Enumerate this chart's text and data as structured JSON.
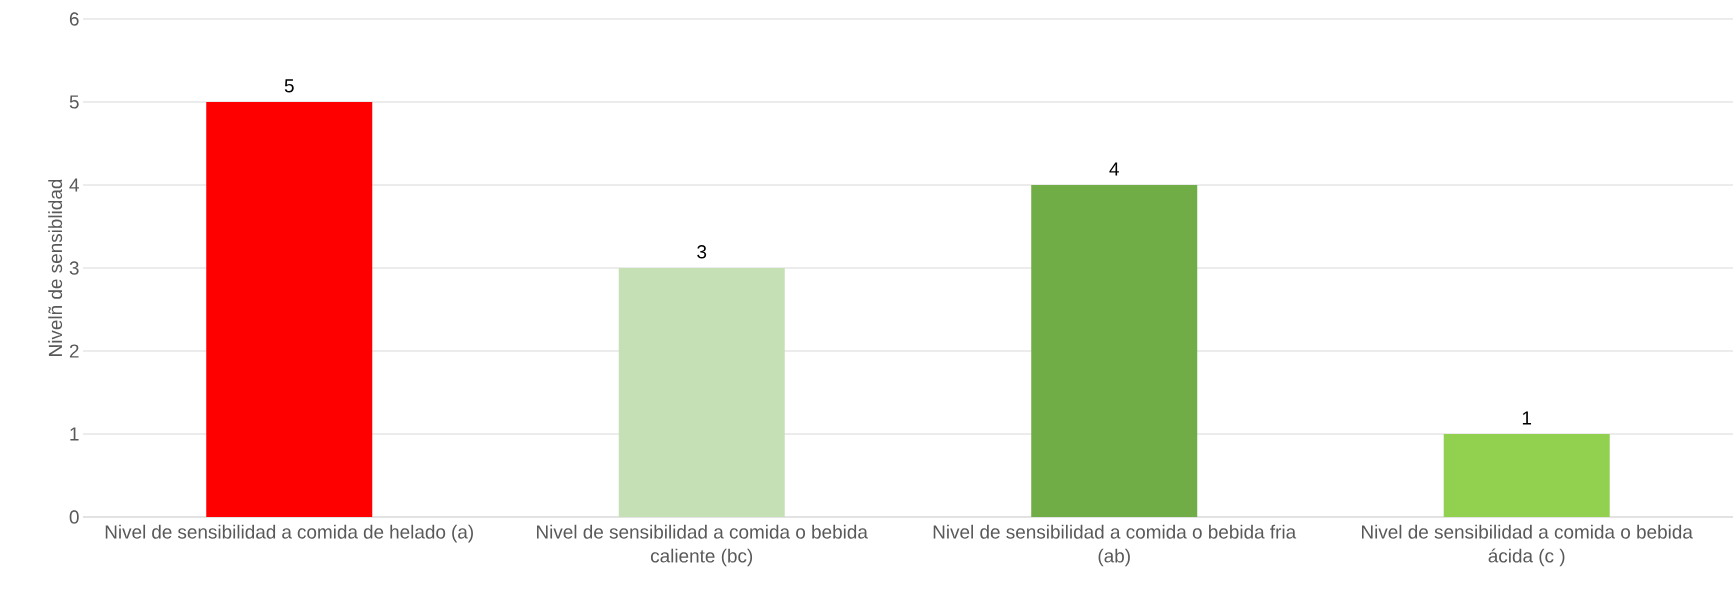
{
  "chart_data": {
    "type": "bar",
    "ylabel": "Nivelñ de sensiblidad",
    "categories": [
      "Nivel de sensibilidad a comida de helado (a)",
      "Nivel de sensibilidad a comida o bebida caliente (bc)",
      "Nivel de sensibilidad a comida o bebida fria (ab)",
      "Nivel de sensibilidad a comida o bebida ácida (c )"
    ],
    "values": [
      5,
      3,
      4,
      1
    ],
    "colors": [
      "#ff0000",
      "#c5e0b4",
      "#70ad47",
      "#92d050"
    ],
    "ylim": [
      0,
      6
    ],
    "yticks": [
      0,
      1,
      2,
      3,
      4,
      5,
      6
    ],
    "grid": "y",
    "data_labels": true
  }
}
